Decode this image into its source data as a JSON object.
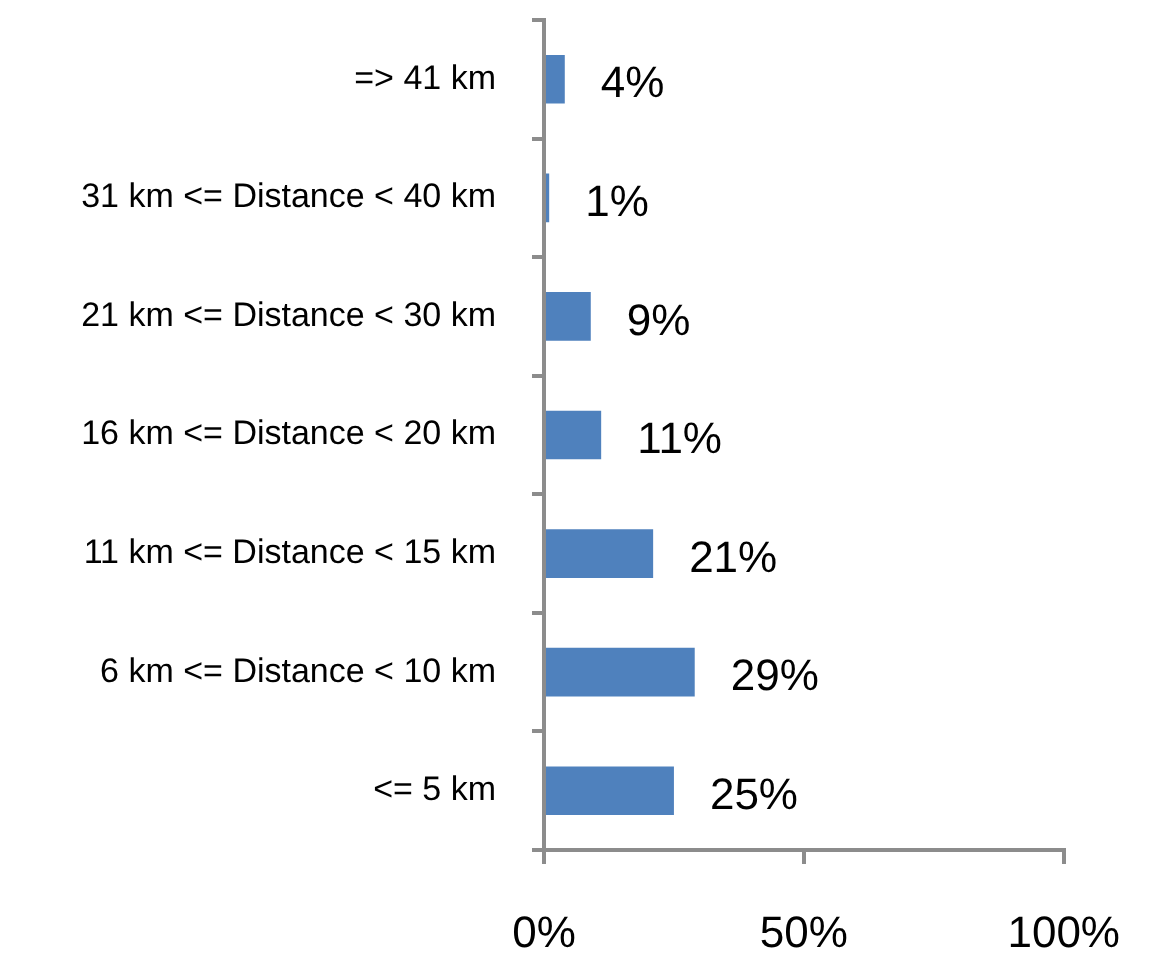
{
  "chart_data": {
    "type": "bar",
    "orientation": "horizontal",
    "categories": [
      "=> 41 km",
      "31 km <= Distance < 40 km",
      "21 km <= Distance < 30 km",
      "16 km <= Distance < 20 km",
      "11 km <= Distance < 15 km",
      "6 km <= Distance < 10 km",
      "<= 5 km"
    ],
    "values": [
      4,
      1,
      9,
      11,
      21,
      29,
      25
    ],
    "value_labels": [
      "4%",
      "1%",
      "9%",
      "11%",
      "21%",
      "29%",
      "25%"
    ],
    "color": "#4f81bd",
    "xlim": [
      0,
      100
    ],
    "xticks": [
      {
        "value": 0,
        "label": "0%"
      },
      {
        "value": 50,
        "label": "50%"
      },
      {
        "value": 100,
        "label": "100%"
      }
    ]
  }
}
